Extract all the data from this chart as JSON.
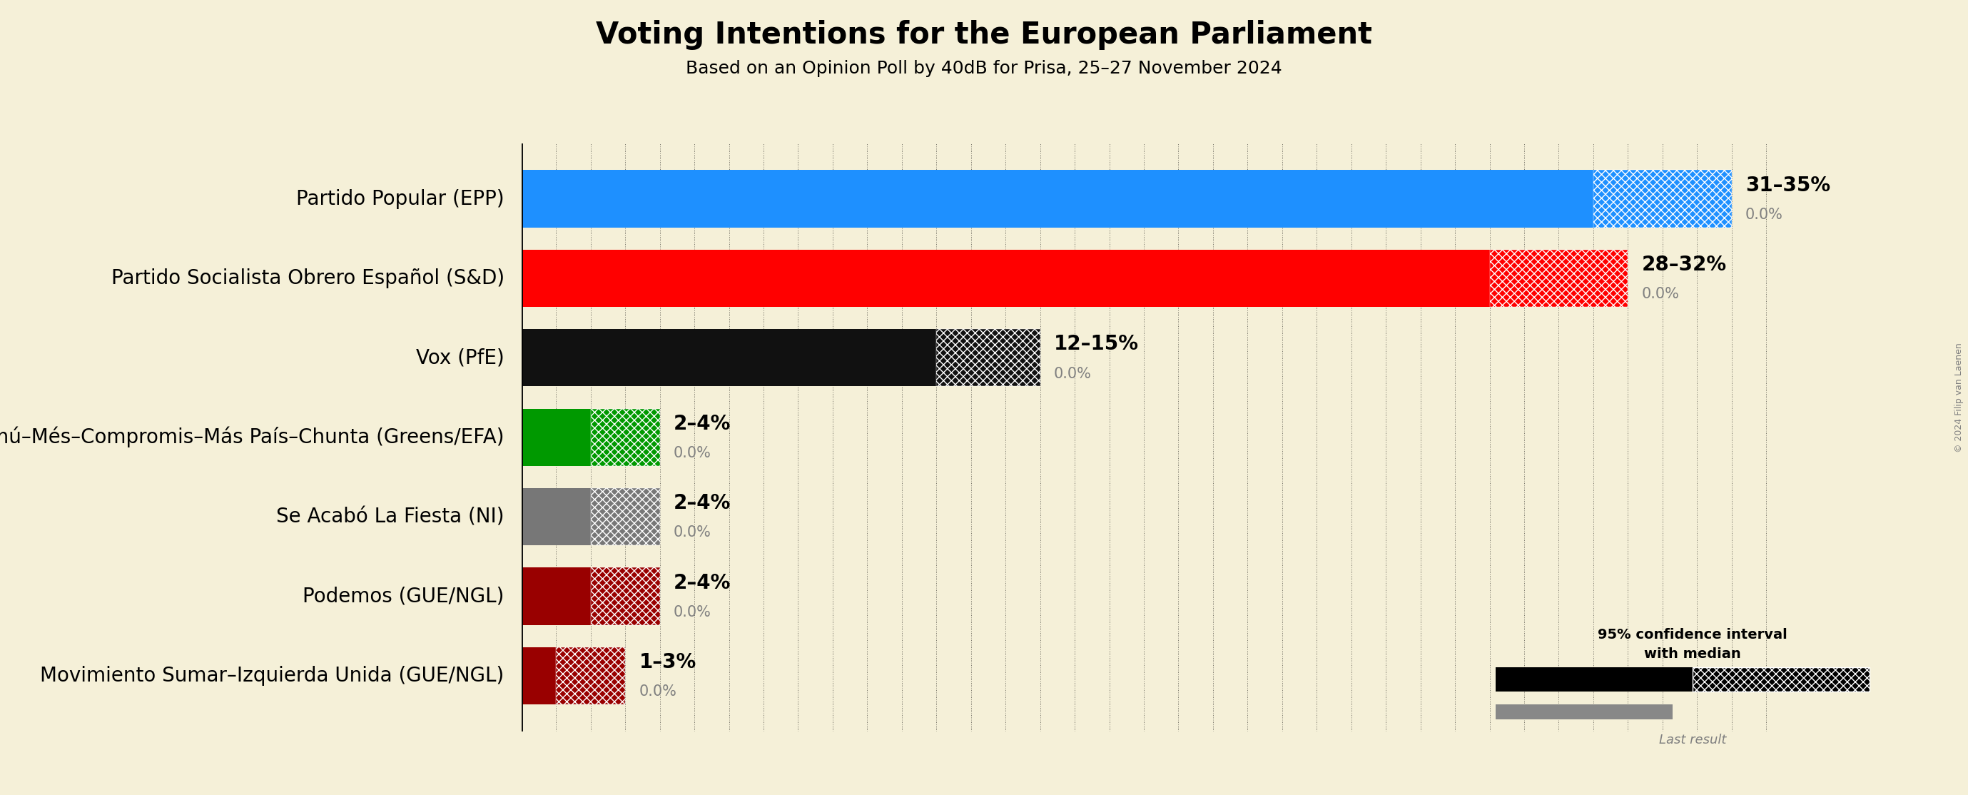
{
  "title": "Voting Intentions for the European Parliament",
  "subtitle": "Based on an Opinion Poll by 40dB for Prisa, 25–27 November 2024",
  "copyright": "© 2024 Filip van Laenen",
  "background_color": "#f5f0d8",
  "parties": [
    "Partido Popular (EPP)",
    "Partido Socialista Obrero Español (S&D)",
    "Vox (PfE)",
    "Movimiento Sumar–Catalunya en Comú–Més–Compromis–Más País–Chunta (Greens/EFA)",
    "Se Acabó La Fiesta (NI)",
    "Podemos (GUE/NGL)",
    "Movimiento Sumar–Izquierda Unida (GUE/NGL)"
  ],
  "low": [
    31,
    28,
    12,
    2,
    2,
    2,
    1
  ],
  "high": [
    35,
    32,
    15,
    4,
    4,
    4,
    3
  ],
  "median": [
    33,
    30,
    13.5,
    3,
    3,
    3,
    2
  ],
  "last_result": [
    0.0,
    0.0,
    0.0,
    0.0,
    0.0,
    0.0,
    0.0
  ],
  "colors": [
    "#1e90ff",
    "#ff0000",
    "#111111",
    "#009900",
    "#777777",
    "#990000",
    "#990000"
  ],
  "range_labels": [
    "31–35%",
    "28–32%",
    "12–15%",
    "2–4%",
    "2–4%",
    "2–4%",
    "1–3%"
  ],
  "last_labels": [
    "0.0%",
    "0.0%",
    "0.0%",
    "0.0%",
    "0.0%",
    "0.0%",
    "0.0%"
  ],
  "xlim_max": 37,
  "bar_height": 0.72,
  "label_fontsize": 20,
  "title_fontsize": 30,
  "subtitle_fontsize": 18,
  "range_fontsize": 20,
  "last_fontsize": 15,
  "grid_step": 1,
  "n_parties": 7
}
